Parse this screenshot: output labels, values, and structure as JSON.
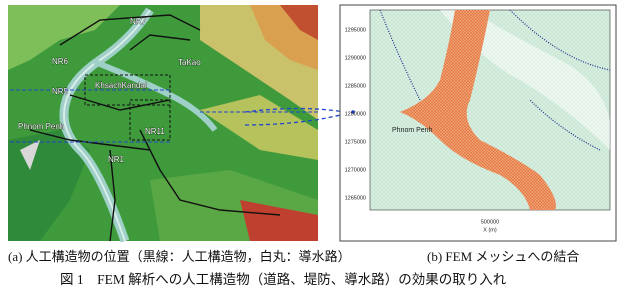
{
  "map_labels": [
    "NR7",
    "NR6",
    "TaKao",
    "NR5",
    "KhsachKandal",
    "Phnom Penh",
    "NR11",
    "NR1"
  ],
  "mesh": {
    "place_label": "Phnom Penh",
    "y_ticks": [
      "1295000",
      "1290000",
      "1285000",
      "1280000",
      "1275000",
      "1270000",
      "1265000"
    ],
    "x_tick": "500000",
    "x_label": "X (m)"
  },
  "captions": {
    "a": "(a) 人工構造物の位置（黒線：人工構造物，白丸：導水路）",
    "b": "(b) FEM メッシュへの結合",
    "figure": "図 1　FEM 解析への人工構造物（道路、堤防、導水路）の効果の取り入れ"
  }
}
